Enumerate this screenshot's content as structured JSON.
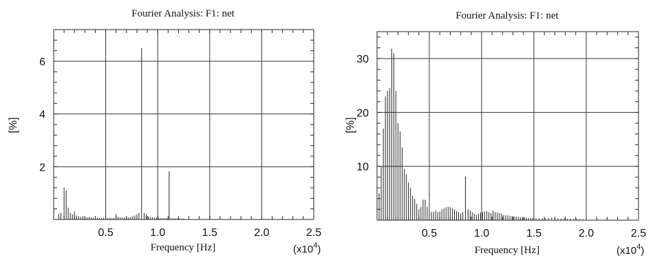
{
  "chart_data": [
    {
      "type": "bar",
      "title": "Fourier Analysis: F1: net",
      "xlabel": "Frequency [Hz]",
      "ylabel": "[%]",
      "x_multiplier": "(x10",
      "x_multiplier_exp": "4",
      "x_multiplier_close": ")",
      "xlim": [
        0,
        2.5
      ],
      "ylim": [
        0,
        7.2
      ],
      "xticks": [
        0.5,
        1.0,
        1.5,
        2.0,
        2.5
      ],
      "xtick_labels": [
        "0.5",
        "1.0",
        "1.5",
        "2.0",
        "2.5"
      ],
      "yticks": [
        2,
        4,
        6
      ],
      "ytick_labels": [
        "2",
        "4",
        "6"
      ],
      "grid": true,
      "spikes": {
        "x": [
          0.05,
          0.07,
          0.1,
          0.12,
          0.14,
          0.16,
          0.18,
          0.2,
          0.22,
          0.24,
          0.26,
          0.28,
          0.3,
          0.32,
          0.34,
          0.36,
          0.38,
          0.4,
          0.42,
          0.44,
          0.46,
          0.48,
          0.5,
          0.52,
          0.54,
          0.56,
          0.58,
          0.6,
          0.62,
          0.64,
          0.66,
          0.68,
          0.7,
          0.72,
          0.74,
          0.76,
          0.78,
          0.8,
          0.82,
          0.845,
          0.87,
          0.89,
          0.91,
          0.93,
          0.95,
          0.97,
          0.99,
          1.01,
          1.03,
          1.05,
          1.07,
          1.09,
          1.11,
          1.13,
          1.15,
          1.17,
          1.19,
          1.21,
          1.23,
          1.25
        ],
        "y": [
          0.2,
          0.25,
          1.2,
          1.1,
          0.45,
          0.25,
          0.2,
          0.3,
          0.15,
          0.12,
          0.1,
          0.12,
          0.1,
          0.08,
          0.1,
          0.08,
          0.07,
          0.06,
          0.07,
          0.06,
          0.05,
          0.06,
          0.05,
          0.05,
          0.06,
          0.05,
          0.06,
          0.2,
          0.1,
          0.08,
          0.07,
          0.08,
          0.1,
          0.08,
          0.1,
          0.12,
          0.15,
          0.2,
          0.25,
          6.5,
          0.25,
          0.2,
          0.12,
          0.1,
          0.08,
          0.07,
          0.06,
          0.06,
          0.05,
          0.05,
          0.05,
          0.05,
          1.82,
          0.05,
          0.04,
          0.04,
          0.04,
          0.03,
          0.03,
          0.03
        ]
      }
    },
    {
      "type": "bar",
      "title": "Fourier Analysis: F1: net",
      "xlabel": "Frequency [Hz]",
      "ylabel": "[%]",
      "x_multiplier": "(x10",
      "x_multiplier_exp": "4",
      "x_multiplier_close": ")",
      "xlim": [
        0,
        2.5
      ],
      "ylim": [
        0,
        35
      ],
      "xticks": [
        0.5,
        1.0,
        1.5,
        2.0,
        2.5
      ],
      "xtick_labels": [
        "0.5",
        "1.0",
        "1.5",
        "2.0",
        "2.5"
      ],
      "yticks": [
        10,
        20,
        30
      ],
      "ytick_labels": [
        "10",
        "20",
        "30"
      ],
      "grid": true,
      "spikes": {
        "x": [
          0.02,
          0.04,
          0.06,
          0.08,
          0.1,
          0.12,
          0.14,
          0.16,
          0.18,
          0.2,
          0.22,
          0.24,
          0.26,
          0.28,
          0.3,
          0.32,
          0.34,
          0.36,
          0.38,
          0.4,
          0.42,
          0.44,
          0.46,
          0.48,
          0.5,
          0.52,
          0.54,
          0.56,
          0.58,
          0.6,
          0.62,
          0.64,
          0.66,
          0.68,
          0.7,
          0.72,
          0.74,
          0.76,
          0.78,
          0.8,
          0.82,
          0.845,
          0.87,
          0.89,
          0.91,
          0.93,
          0.95,
          0.97,
          0.99,
          1.01,
          1.03,
          1.05,
          1.07,
          1.09,
          1.11,
          1.13,
          1.15,
          1.17,
          1.19,
          1.21,
          1.23,
          1.25,
          1.27,
          1.29,
          1.31,
          1.33,
          1.35,
          1.37,
          1.39,
          1.41,
          1.43,
          1.45,
          1.47,
          1.49,
          1.52,
          1.55,
          1.58,
          1.61,
          1.64,
          1.67,
          1.7,
          1.73,
          1.76,
          1.79,
          1.82,
          1.85,
          1.88,
          1.91,
          1.94,
          1.97,
          2.0
        ],
        "y": [
          5,
          10,
          17,
          23,
          24,
          24.5,
          31.8,
          31,
          24,
          18,
          16.5,
          13.5,
          9.5,
          8.5,
          7,
          6,
          4.5,
          4,
          3,
          2,
          2.5,
          3.8,
          3.8,
          2.5,
          1.8,
          1.5,
          1.5,
          1.8,
          1.5,
          1.6,
          2,
          2.2,
          2.4,
          2.5,
          2.4,
          2.2,
          2,
          1.7,
          1.5,
          1.2,
          1.5,
          8.1,
          2,
          1.8,
          1.5,
          1.2,
          1,
          1.2,
          1.4,
          1.5,
          1.6,
          1.7,
          1.5,
          1.3,
          1.8,
          1.5,
          1.4,
          1.3,
          1.2,
          1,
          0.9,
          0.9,
          0.8,
          0.8,
          0.7,
          0.7,
          0.6,
          0.6,
          0.5,
          0.5,
          0.5,
          0.4,
          0.4,
          0.4,
          0.35,
          0.35,
          0.35,
          0.3,
          0.4,
          0.5,
          0.4,
          0.35,
          0.3,
          0.3,
          0.25,
          0.25,
          0.2,
          0.2,
          0.2,
          0.15,
          0.15
        ]
      }
    }
  ]
}
